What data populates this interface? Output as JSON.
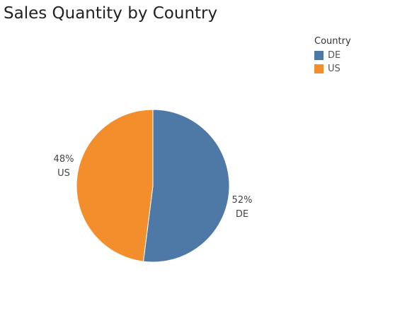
{
  "chart_data": {
    "type": "pie",
    "title": "Sales Quantity by Country",
    "legend_title": "Country",
    "legend_position": "top-right",
    "slices": [
      {
        "label": "DE",
        "percent_label": "52%",
        "value": 52,
        "color": "#4e79a7"
      },
      {
        "label": "US",
        "percent_label": "48%",
        "value": 48,
        "color": "#f28e2b"
      }
    ]
  }
}
